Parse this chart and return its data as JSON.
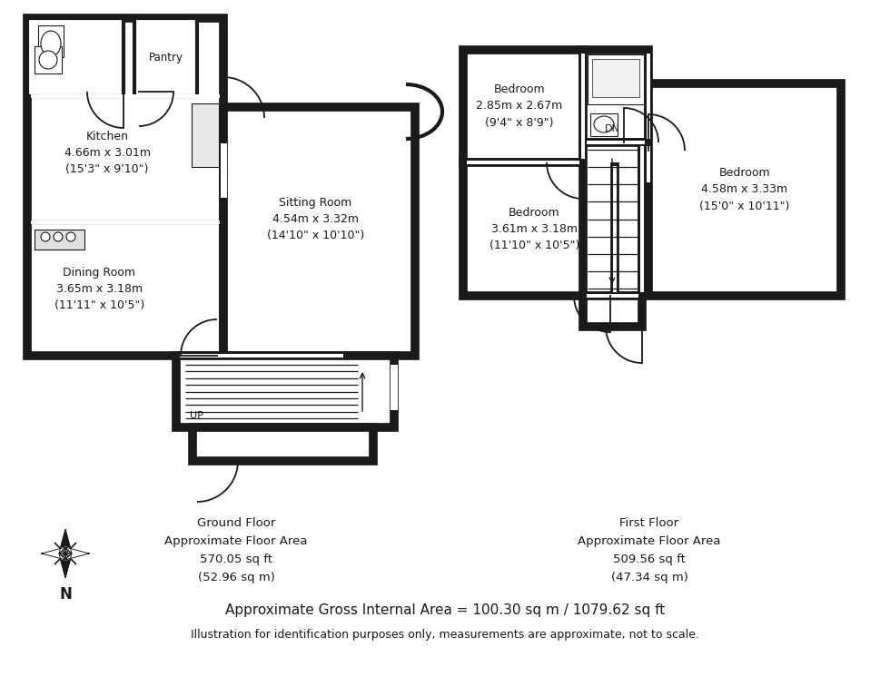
{
  "bg_color": "#ffffff",
  "wall_color": "#1a1a1a",
  "title_ground": "Ground Floor\nApproximate Floor Area\n570.05 sq ft\n(52.96 sq m)",
  "title_first": "First Floor\nApproximate Floor Area\n509.56 sq ft\n(47.34 sq m)",
  "gross_area": "Approximate Gross Internal Area = 100.30 sq m / 1079.62 sq ft",
  "disclaimer": "Illustration for identification purposes only, measurements are approximate, not to scale.",
  "kitchen_label": "Kitchen\n4.66m x 3.01m\n(15'3\" x 9'10\")",
  "dining_label": "Dining Room\n3.65m x 3.18m\n(11'11\" x 10'5\")",
  "sitting_label": "Sitting Room\n4.54m x 3.32m\n(14'10\" x 10'10\")",
  "pantry_label": "Pantry",
  "bedroom1_label": "Bedroom\n2.85m x 2.67m\n(9'4\" x 8'9\")",
  "bedroom2_label": "Bedroom\n3.61m x 3.18m\n(11'10\" x 10'5\")",
  "bedroom3_label": "Bedroom\n4.58m x 3.33m\n(15'0\" x 10'11\")",
  "up_label": "UP",
  "dn_label": "DN"
}
